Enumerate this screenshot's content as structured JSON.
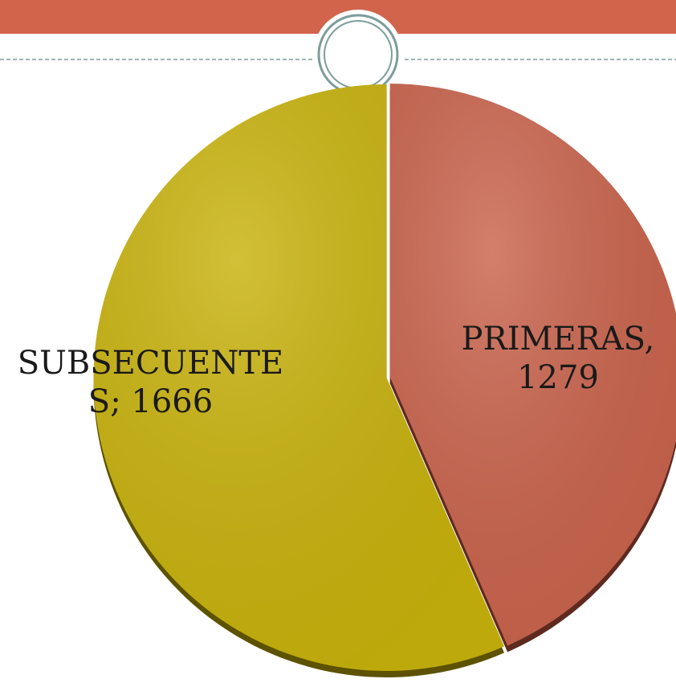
{
  "chart_data": {
    "type": "pie",
    "categories": [
      "PRIMERAS",
      "SUBSECUENTES"
    ],
    "values": [
      1279,
      1666
    ],
    "value_labels": [
      "PRIMERAS, 1279",
      "SUBSECUENTES; 1666"
    ],
    "colors": [
      "#c9634c",
      "#c8b20c"
    ]
  }
}
